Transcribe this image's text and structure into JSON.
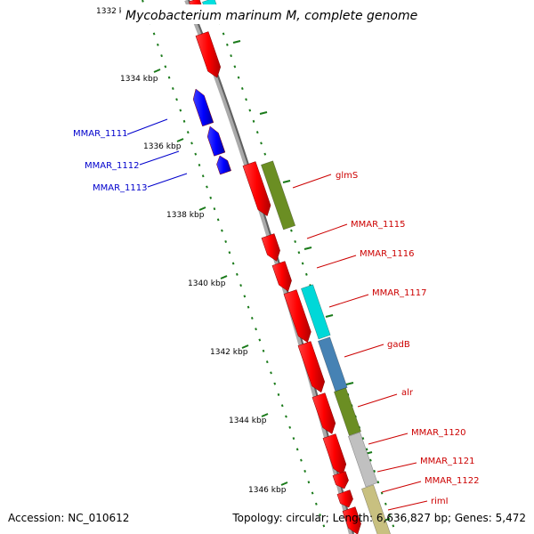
{
  "title": "Mycobacterium marinum M, complete genome",
  "accession": "Accession: NC_010612",
  "summary": "Topology: circular; Length: 6,636,827 bp; Genes: 5,472",
  "colors": {
    "backbone": "#808080",
    "cds": "#ff0000",
    "reverse_cds": "#0000ff",
    "tick": "#1a7a1a",
    "label_forward": "#cc0000",
    "label_reverse": "#0000cc"
  },
  "ticks": [
    "1332 kbp",
    "1334 kbp",
    "1336 kbp",
    "1338 kbp",
    "1340 kbp",
    "1342 kbp",
    "1344 kbp",
    "1346 kbp"
  ],
  "reverse_genes": [
    "MMAR_1111",
    "MMAR_1112",
    "MMAR_1113"
  ],
  "forward_genes": [
    "glmS",
    "MMAR_1115",
    "MMAR_1116",
    "MMAR_1117",
    "gadB",
    "alr",
    "MMAR_1120",
    "MMAR_1121",
    "MMAR_1122",
    "rimI"
  ],
  "cog_colors": [
    "#00e0e0",
    "#6b8e23",
    "#00d8d8",
    "#4682b4",
    "#6b8e23",
    "#c0c0c0",
    "#c8c080"
  ]
}
